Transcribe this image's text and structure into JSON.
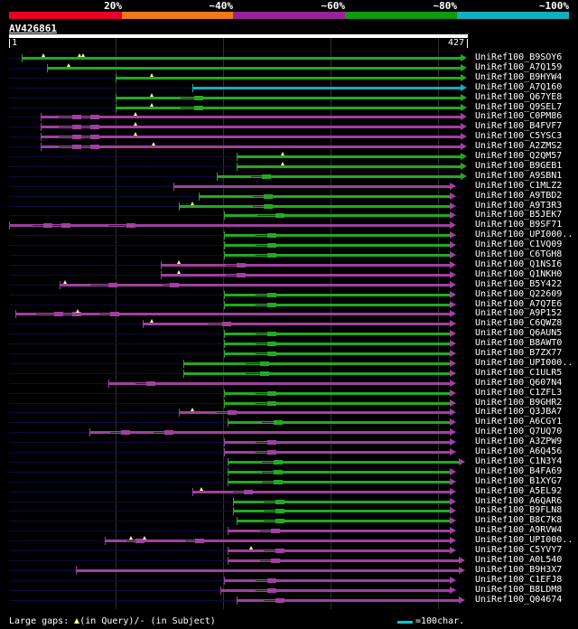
{
  "legend": [
    {
      "label": "20%",
      "color": "#e8002a"
    },
    {
      "label": "~40%",
      "color": "#ee7a1a"
    },
    {
      "label": "~60%",
      "color": "#992299"
    },
    {
      "label": "~80%",
      "color": "#119911"
    },
    {
      "label": "~100%",
      "color": "#10b0c0"
    }
  ],
  "query": {
    "id": "AV426861",
    "start": "1",
    "end": "427"
  },
  "colors": {
    "100": "#10b0c0",
    "80": "#22aa22",
    "60": "#a040a0",
    "line": "#0b0b44",
    "gapmark": "#ffff99"
  },
  "hits": [
    {
      "name": "UniRef100_B9SOY6",
      "c": "80",
      "s": 24,
      "e": 510,
      "ar": "80",
      "m": [
        48,
        88,
        92
      ],
      "g": []
    },
    {
      "name": "UniRef100_A7Q159",
      "c": "80",
      "s": 52,
      "e": 510,
      "ar": "80",
      "m": [
        76
      ],
      "g": []
    },
    {
      "name": "UniRef100_B9HYW4",
      "c": "80",
      "s": 128,
      "e": 510,
      "ar": "80",
      "m": [
        168
      ],
      "g": []
    },
    {
      "name": "UniRef100_A7Q160",
      "c": "100",
      "s": 213,
      "e": 510,
      "ar": "100",
      "m": [],
      "g": []
    },
    {
      "name": "UniRef100_Q67YE8",
      "c": "80",
      "s": 128,
      "e": 510,
      "ar": "80",
      "m": [
        168
      ],
      "g": [
        [
          200,
          215
        ]
      ]
    },
    {
      "name": "UniRef100_Q9SEL7",
      "c": "80",
      "s": 128,
      "e": 510,
      "ar": "80",
      "m": [
        168
      ],
      "g": [
        [
          200,
          215
        ]
      ]
    },
    {
      "name": "UniRef100_C0PM86",
      "c": "60",
      "s": 45,
      "e": 510,
      "ar": "60",
      "m": [
        150
      ],
      "g": [
        [
          65,
          80
        ],
        [
          90,
          100
        ]
      ]
    },
    {
      "name": "UniRef100_B4FVF7",
      "c": "60",
      "s": 45,
      "e": 510,
      "ar": "60",
      "m": [
        150
      ],
      "g": [
        [
          65,
          80
        ],
        [
          90,
          100
        ]
      ]
    },
    {
      "name": "UniRef100_C5YSC3",
      "c": "60",
      "s": 45,
      "e": 510,
      "ar": "60",
      "m": [
        150
      ],
      "g": [
        [
          65,
          80
        ],
        [
          90,
          100
        ]
      ]
    },
    {
      "name": "UniRef100_A2ZMS2",
      "c": "60",
      "s": 45,
      "e": 510,
      "ar": "60",
      "m": [
        170
      ],
      "g": [
        [
          65,
          80
        ],
        [
          90,
          100
        ]
      ]
    },
    {
      "name": "UniRef100_Q2QM57",
      "c": "80",
      "s": 262,
      "e": 510,
      "ar": "80",
      "m": [
        313
      ],
      "g": []
    },
    {
      "name": "UniRef100_B9GEB1",
      "c": "80",
      "s": 262,
      "e": 510,
      "ar": "80",
      "m": [
        313
      ],
      "g": []
    },
    {
      "name": "UniRef100_A9SBN1",
      "c": "80",
      "s": 240,
      "e": 510,
      "ar": "80",
      "m": [],
      "g": [
        [
          278,
          290
        ]
      ]
    },
    {
      "name": "UniRef100_C1MLZ2",
      "c": "60",
      "s": 192,
      "e": 498,
      "ar": "60",
      "m": [],
      "g": []
    },
    {
      "name": "UniRef100_A9TBD2",
      "c": "80",
      "s": 220,
      "e": 498,
      "ar": "60",
      "m": [],
      "g": [
        [
          280,
          292
        ]
      ]
    },
    {
      "name": "UniRef100_A9T3R3",
      "c": "80",
      "s": 198,
      "e": 498,
      "ar": "60",
      "m": [
        213
      ],
      "g": [
        [
          280,
          292
        ]
      ]
    },
    {
      "name": "UniRef100_B5JEK7",
      "c": "80",
      "s": 248,
      "e": 498,
      "ar": "60",
      "m": [],
      "g": [
        [
          285,
          305
        ]
      ]
    },
    {
      "name": "UniRef100_B9SF71",
      "c": "60",
      "s": 10,
      "e": 498,
      "ar": "60",
      "m": [],
      "g": [
        [
          36,
          48
        ],
        [
          58,
          68
        ],
        [
          120,
          140
        ]
      ]
    },
    {
      "name": "UniRef100_UPI000..",
      "c": "80",
      "s": 248,
      "e": 498,
      "ar": "60",
      "m": [],
      "g": [
        [
          283,
          296
        ]
      ]
    },
    {
      "name": "UniRef100_C1VQ09",
      "c": "80",
      "s": 248,
      "e": 498,
      "ar": "60",
      "m": [],
      "g": [
        [
          283,
          296
        ]
      ]
    },
    {
      "name": "UniRef100_C6TGH8",
      "c": "80",
      "s": 248,
      "e": 498,
      "ar": "60",
      "m": [],
      "g": [
        [
          283,
          296
        ]
      ]
    },
    {
      "name": "UniRef100_Q1NSI6",
      "c": "60",
      "s": 178,
      "e": 498,
      "ar": "60",
      "m": [
        198
      ],
      "g": [
        [
          250,
          262
        ]
      ]
    },
    {
      "name": "UniRef100_Q1NKH0",
      "c": "60",
      "s": 178,
      "e": 498,
      "ar": "60",
      "m": [
        198
      ],
      "g": [
        [
          250,
          262
        ]
      ]
    },
    {
      "name": "UniRef100_B5Y422",
      "c": "60",
      "s": 66,
      "e": 498,
      "ar": "60",
      "m": [
        72
      ],
      "g": [
        [
          100,
          120
        ],
        [
          180,
          188
        ]
      ]
    },
    {
      "name": "UniRef100_Q22609",
      "c": "80",
      "s": 248,
      "e": 498,
      "ar": "60",
      "m": [],
      "g": [
        [
          283,
          296
        ]
      ]
    },
    {
      "name": "UniRef100_A7Q7E6",
      "c": "80",
      "s": 248,
      "e": 498,
      "ar": "60",
      "m": [],
      "g": [
        [
          283,
          296
        ]
      ]
    },
    {
      "name": "UniRef100_A9P152",
      "c": "60",
      "s": 17,
      "e": 498,
      "ar": "60",
      "m": [
        86
      ],
      "g": [
        [
          40,
          60
        ],
        [
          70,
          80
        ],
        [
          110,
          122
        ]
      ]
    },
    {
      "name": "UniRef100_C6QWZ8",
      "c": "60",
      "s": 158,
      "e": 498,
      "ar": "60",
      "m": [
        168
      ],
      "g": [
        [
          230,
          246
        ]
      ]
    },
    {
      "name": "UniRef100_Q6AUN5",
      "c": "80",
      "s": 248,
      "e": 498,
      "ar": "60",
      "m": [],
      "g": [
        [
          283,
          296
        ]
      ]
    },
    {
      "name": "UniRef100_B8AWT0",
      "c": "80",
      "s": 248,
      "e": 498,
      "ar": "60",
      "m": [],
      "g": [
        [
          283,
          296
        ]
      ]
    },
    {
      "name": "UniRef100_B7ZX77",
      "c": "80",
      "s": 248,
      "e": 498,
      "ar": "60",
      "m": [],
      "g": [
        [
          283,
          296
        ]
      ]
    },
    {
      "name": "UniRef100_UPI000..",
      "c": "80",
      "s": 203,
      "e": 498,
      "ar": "60",
      "m": [],
      "g": [
        [
          272,
          288
        ]
      ]
    },
    {
      "name": "UniRef100_C1ULR5",
      "c": "80",
      "s": 203,
      "e": 498,
      "ar": "60",
      "m": [],
      "g": [
        [
          272,
          288
        ]
      ]
    },
    {
      "name": "UniRef100_Q607N4",
      "c": "60",
      "s": 120,
      "e": 498,
      "ar": "60",
      "m": [],
      "g": [
        [
          150,
          162
        ]
      ]
    },
    {
      "name": "UniRef100_C1ZFL3",
      "c": "80",
      "s": 248,
      "e": 498,
      "ar": "60",
      "m": [],
      "g": [
        [
          283,
          296
        ]
      ]
    },
    {
      "name": "UniRef100_B9GHR2",
      "c": "80",
      "s": 248,
      "e": 498,
      "ar": "60",
      "m": [],
      "g": [
        [
          283,
          296
        ]
      ]
    },
    {
      "name": "UniRef100_Q3JBA7",
      "c": "60",
      "s": 198,
      "e": 498,
      "ar": "60",
      "m": [
        213
      ],
      "g": [
        [
          240,
          252
        ]
      ]
    },
    {
      "name": "UniRef100_A6CGY1",
      "c": "80",
      "s": 252,
      "e": 498,
      "ar": "60",
      "m": [],
      "g": [
        [
          290,
          303
        ]
      ]
    },
    {
      "name": "UniRef100_Q7UQ70",
      "c": "60",
      "s": 99,
      "e": 498,
      "ar": "60",
      "m": [],
      "g": [
        [
          122,
          134
        ],
        [
          170,
          182
        ]
      ]
    },
    {
      "name": "UniRef100_A3ZPW9",
      "c": "60",
      "s": 248,
      "e": 498,
      "ar": "60",
      "m": [],
      "g": [
        [
          283,
          296
        ]
      ]
    },
    {
      "name": "UniRef100_A6Q456",
      "c": "60",
      "s": 248,
      "e": 498,
      "ar": "60",
      "m": [],
      "g": [
        [
          283,
          296
        ]
      ]
    },
    {
      "name": "UniRef100_C1N3Y4",
      "c": "80",
      "s": 252,
      "e": 508,
      "ar": "60",
      "m": [],
      "g": [
        [
          290,
          303
        ]
      ]
    },
    {
      "name": "UniRef100_B4FA69",
      "c": "80",
      "s": 252,
      "e": 498,
      "ar": "60",
      "m": [],
      "g": [
        [
          290,
          303
        ]
      ]
    },
    {
      "name": "UniRef100_B1XYG7",
      "c": "80",
      "s": 252,
      "e": 498,
      "ar": "60",
      "m": [],
      "g": [
        [
          290,
          303
        ]
      ]
    },
    {
      "name": "UniRef100_A5EL92",
      "c": "60",
      "s": 213,
      "e": 498,
      "ar": "60",
      "m": [
        223
      ],
      "g": [
        [
          258,
          270
        ]
      ]
    },
    {
      "name": "UniRef100_A6QAR6",
      "c": "80",
      "s": 258,
      "e": 498,
      "ar": "60",
      "m": [],
      "g": [
        [
          292,
          305
        ]
      ]
    },
    {
      "name": "UniRef100_B9FLN8",
      "c": "80",
      "s": 258,
      "e": 498,
      "ar": "60",
      "m": [],
      "g": [
        [
          292,
          305
        ]
      ]
    },
    {
      "name": "UniRef100_B8C7K8",
      "c": "80",
      "s": 262,
      "e": 498,
      "ar": "60",
      "m": [],
      "g": [
        [
          292,
          305
        ]
      ]
    },
    {
      "name": "UniRef100_A9RVW4",
      "c": "60",
      "s": 252,
      "e": 498,
      "ar": "60",
      "m": [],
      "g": [
        [
          288,
          300
        ]
      ]
    },
    {
      "name": "UniRef100_UPI000..",
      "c": "60",
      "s": 116,
      "e": 498,
      "ar": "60",
      "m": [
        145,
        160
      ],
      "g": [
        [
          140,
          150
        ],
        [
          205,
          216
        ]
      ]
    },
    {
      "name": "UniRef100_C5YVY7",
      "c": "60",
      "s": 252,
      "e": 498,
      "ar": "60",
      "m": [
        278
      ],
      "g": [
        [
          292,
          305
        ]
      ]
    },
    {
      "name": "UniRef100_A0L540",
      "c": "60",
      "s": 252,
      "e": 508,
      "ar": "60",
      "m": [],
      "g": [
        [
          288,
          300
        ]
      ]
    },
    {
      "name": "UniRef100_B9H3X7",
      "c": "60",
      "s": 84,
      "e": 508,
      "ar": "60",
      "m": [],
      "g": []
    },
    {
      "name": "UniRef100_C1EFJ8",
      "c": "60",
      "s": 248,
      "e": 498,
      "ar": "60",
      "m": [],
      "g": [
        [
          283,
          296
        ]
      ]
    },
    {
      "name": "UniRef100_B8LDM8",
      "c": "60",
      "s": 244,
      "e": 498,
      "ar": "60",
      "m": [],
      "g": [
        [
          283,
          296
        ]
      ]
    },
    {
      "name": "UniRef100_Q04674",
      "c": "60",
      "s": 262,
      "e": 508,
      "ar": "60",
      "m": [],
      "g": [
        [
          292,
          305
        ]
      ]
    }
  ],
  "footer": {
    "prefix": "Large gaps: ",
    "in_query": "(in Query)/",
    "dash": "-",
    "in_subject": " (in Subject)",
    "scale": "=100char."
  }
}
